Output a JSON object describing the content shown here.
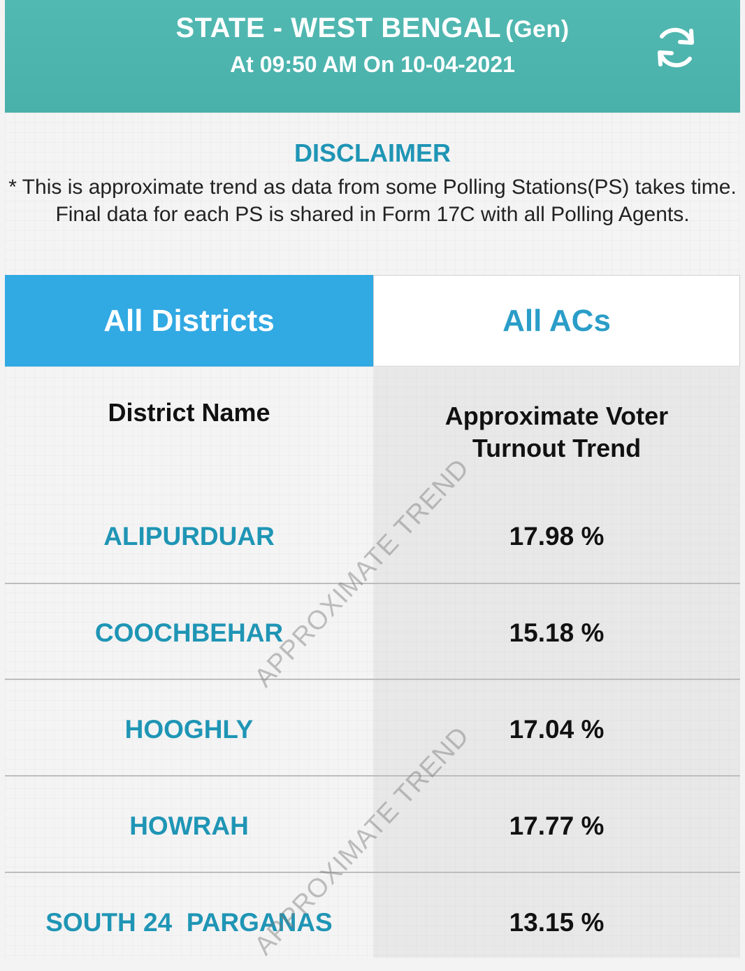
{
  "header": {
    "title": "STATE - WEST BENGAL",
    "category": "(Gen)",
    "timestamp": "At 09:50 AM On 10-04-2021",
    "refresh_icon": "refresh-icon",
    "background_color": "#4fb6b0"
  },
  "disclaimer": {
    "title": "DISCLAIMER",
    "text": "* This is approximate trend as data from some Polling Stations(PS) takes time. Final data for each PS is shared in Form 17C with all Polling Agents."
  },
  "tabs": [
    {
      "label": "All Districts",
      "active": true
    },
    {
      "label": "All ACs",
      "active": false
    }
  ],
  "table": {
    "col_name_header": "District Name",
    "col_turnout_header": "Approximate Voter Turnout Trend",
    "rows": [
      {
        "district": "ALIPURDUAR",
        "turnout": "17.98 %"
      },
      {
        "district": "COOCHBEHAR",
        "turnout": "15.18 %"
      },
      {
        "district": "HOOGHLY",
        "turnout": "17.04 %"
      },
      {
        "district": "HOWRAH",
        "turnout": "17.77 %"
      },
      {
        "district": "SOUTH 24  PARGANAS",
        "turnout": "13.15 %"
      }
    ]
  },
  "watermark": {
    "text": "APPROXIMATE TREND"
  },
  "colors": {
    "accent_teal": "#1f95b5",
    "tab_active": "#31a9e3"
  }
}
